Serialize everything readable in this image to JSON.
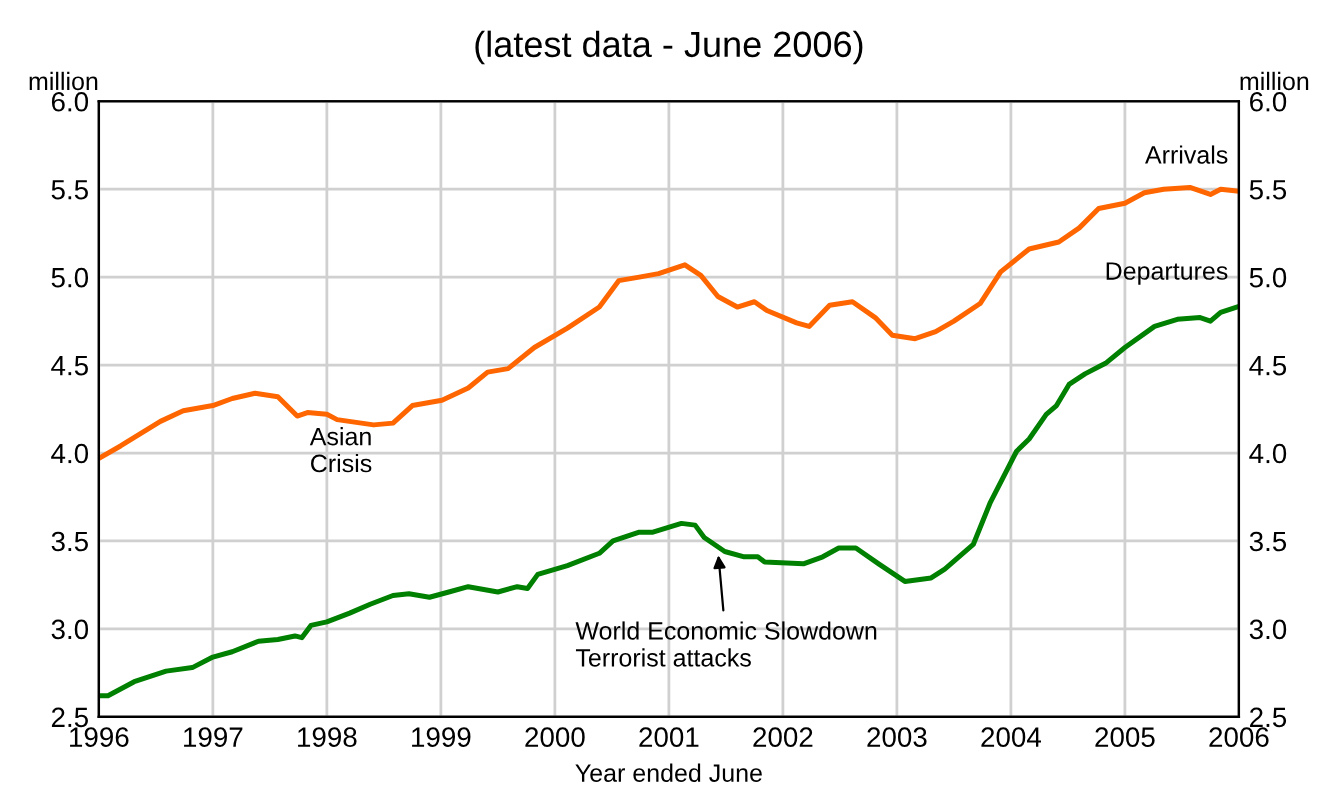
{
  "chart_data": {
    "type": "line",
    "title": "(latest data - June 2006)",
    "xlabel": "Year ended June",
    "ylabel": "million",
    "y2label": "million",
    "xlim": [
      1996,
      2006
    ],
    "xticks": [
      1996,
      1997,
      1998,
      1999,
      2000,
      2001,
      2002,
      2003,
      2004,
      2005,
      2006
    ],
    "ylim": [
      2.5,
      6.0
    ],
    "yticks": [
      {
        "value": 2.5,
        "label": "2.5"
      },
      {
        "value": 3.0,
        "label": "3.0"
      },
      {
        "value": 3.5,
        "label": "3.5"
      },
      {
        "value": 4.0,
        "label": "4.0"
      },
      {
        "value": 4.5,
        "label": "4.5"
      },
      {
        "value": 5.0,
        "label": "5.0"
      },
      {
        "value": 5.5,
        "label": "5.5"
      },
      {
        "value": 6.0,
        "label": "6.0"
      }
    ],
    "y2lim": [
      2.5,
      6.0
    ],
    "y2ticks": [
      {
        "value": 2.5,
        "label": "2.5"
      },
      {
        "value": 3.0,
        "label": "3.0"
      },
      {
        "value": 3.5,
        "label": "3.5"
      },
      {
        "value": 4.0,
        "label": "4.0"
      },
      {
        "value": 4.5,
        "label": "4.5"
      },
      {
        "value": 5.0,
        "label": "5.0"
      },
      {
        "value": 5.5,
        "label": "5.5"
      },
      {
        "value": 6.0,
        "label": "6.0"
      }
    ],
    "grid": true,
    "legend": false,
    "marker": "none",
    "line_style": "solid",
    "series": [
      {
        "name": "Arrivals",
        "color": "#ff6600",
        "x": [
          1996.0,
          1996.19,
          1996.54,
          1996.74,
          1997.0,
          1997.17,
          1997.37,
          1997.57,
          1997.74,
          1997.83,
          1998.0,
          1998.09,
          1998.41,
          1998.58,
          1998.75,
          1999.01,
          1999.24,
          1999.41,
          1999.59,
          1999.82,
          2000.11,
          2000.39,
          2000.56,
          2000.74,
          2000.91,
          2001.14,
          2001.28,
          2001.43,
          2001.6,
          2001.75,
          2001.86,
          2002.12,
          2002.23,
          2002.41,
          2002.61,
          2002.81,
          2002.96,
          2003.16,
          2003.34,
          2003.5,
          2003.73,
          2003.91,
          2004.16,
          2004.42,
          2004.6,
          2004.77,
          2005.0,
          2005.17,
          2005.34,
          2005.57,
          2005.75,
          2005.84,
          2005.98
        ],
        "values": [
          3.97,
          4.04,
          4.18,
          4.24,
          4.27,
          4.31,
          4.34,
          4.32,
          4.21,
          4.23,
          4.22,
          4.19,
          4.16,
          4.17,
          4.27,
          4.3,
          4.37,
          4.46,
          4.48,
          4.6,
          4.71,
          4.83,
          4.98,
          5.0,
          5.02,
          5.07,
          5.01,
          4.89,
          4.83,
          4.86,
          4.81,
          4.74,
          4.72,
          4.84,
          4.86,
          4.77,
          4.67,
          4.65,
          4.69,
          4.75,
          4.85,
          5.03,
          5.16,
          5.2,
          5.28,
          5.39,
          5.42,
          5.48,
          5.5,
          5.51,
          5.47,
          5.5,
          5.49
        ]
      },
      {
        "name": "Departures",
        "color": "#008000",
        "x": [
          1996.0,
          1996.08,
          1996.31,
          1996.59,
          1996.82,
          1997.0,
          1997.17,
          1997.4,
          1997.57,
          1997.72,
          1997.78,
          1997.86,
          1998.0,
          1998.2,
          1998.38,
          1998.58,
          1998.72,
          1998.9,
          1999.07,
          1999.24,
          1999.5,
          1999.67,
          1999.76,
          1999.85,
          2000.11,
          2000.39,
          2000.51,
          2000.74,
          2000.86,
          2001.11,
          2001.23,
          2001.31,
          2001.49,
          2001.66,
          2001.78,
          2001.84,
          2002.18,
          2002.35,
          2002.49,
          2002.64,
          2002.84,
          2003.07,
          2003.3,
          2003.42,
          2003.67,
          2003.82,
          2004.05,
          2004.16,
          2004.31,
          2004.4,
          2004.51,
          2004.65,
          2004.77,
          2004.83,
          2005.0,
          2005.26,
          2005.46,
          2005.66,
          2005.75,
          2005.84,
          2005.98
        ],
        "values": [
          2.62,
          2.62,
          2.7,
          2.76,
          2.78,
          2.84,
          2.87,
          2.93,
          2.94,
          2.96,
          2.95,
          3.02,
          3.04,
          3.09,
          3.14,
          3.19,
          3.2,
          3.18,
          3.21,
          3.24,
          3.21,
          3.24,
          3.23,
          3.31,
          3.36,
          3.43,
          3.5,
          3.55,
          3.55,
          3.6,
          3.59,
          3.52,
          3.44,
          3.41,
          3.41,
          3.38,
          3.37,
          3.41,
          3.46,
          3.46,
          3.37,
          3.27,
          3.29,
          3.34,
          3.48,
          3.72,
          4.01,
          4.08,
          4.22,
          4.27,
          4.39,
          4.45,
          4.49,
          4.51,
          4.6,
          4.72,
          4.76,
          4.77,
          4.75,
          4.8,
          4.83
        ]
      }
    ],
    "annotations": [
      "Asian\nCrisis",
      {
        "text": "World Economic Slowdown\nTerrorist attacks",
        "x": 2001.43,
        "y": 3.45
      }
    ]
  }
}
